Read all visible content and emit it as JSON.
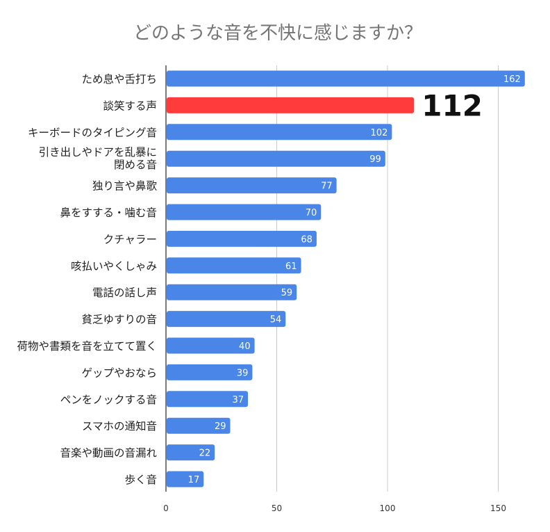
{
  "chart_data": {
    "type": "bar",
    "orientation": "horizontal",
    "title": "どのような音を不快に感じますか？",
    "xlabel": "",
    "ylabel": "",
    "xlim": [
      0,
      165
    ],
    "x_ticks": [
      0,
      50,
      100,
      150
    ],
    "grid": true,
    "categories": [
      [
        "ため息や舌打ち"
      ],
      [
        "談笑する声"
      ],
      [
        "キーボードのタイピング音"
      ],
      [
        "引き出しやドアを乱暴に",
        "閉める音"
      ],
      [
        "独り言や鼻歌"
      ],
      [
        "鼻をすする・噛む音"
      ],
      [
        "クチャラー"
      ],
      [
        "咳払いやくしゃみ"
      ],
      [
        "電話の話し声"
      ],
      [
        "貧乏ゆすりの音"
      ],
      [
        "荷物や書類を音を立てて置く"
      ],
      [
        "ゲップやおなら"
      ],
      [
        "ペンをノックする音"
      ],
      [
        "スマホの通知音"
      ],
      [
        "音楽や動画の音漏れ"
      ],
      [
        "歩く音"
      ]
    ],
    "values": [
      162,
      112,
      102,
      99,
      77,
      70,
      68,
      61,
      59,
      54,
      40,
      39,
      37,
      29,
      22,
      17
    ],
    "highlight_index": 1,
    "highlight_label": "112",
    "colors": {
      "bar": "#4a86e8",
      "highlight": "#ff3b3b",
      "grid": "#cccccc",
      "axis": "#333333",
      "title": "#757575"
    }
  }
}
